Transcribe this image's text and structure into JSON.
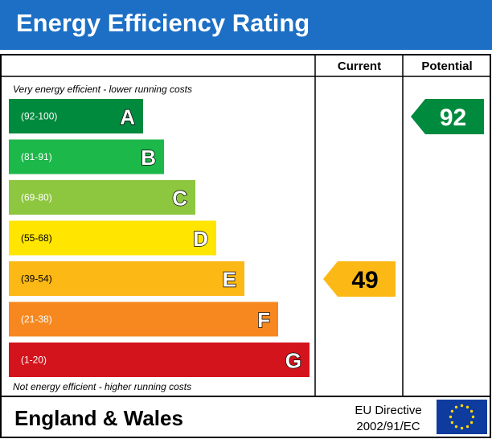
{
  "header": {
    "title": "Energy Efficiency Rating"
  },
  "columns": {
    "current": "Current",
    "potential": "Potential"
  },
  "notes": {
    "top": "Very energy efficient - lower running costs",
    "bottom": "Not energy efficient - higher running costs"
  },
  "chart_data": {
    "type": "bar",
    "categories": [
      "A",
      "B",
      "C",
      "D",
      "E",
      "F",
      "G"
    ],
    "ranges": [
      "(92-100)",
      "(81-91)",
      "(69-80)",
      "(55-68)",
      "(39-54)",
      "(21-38)",
      "(1-20)"
    ],
    "colors": [
      "#008a3e",
      "#1cb84a",
      "#8dc63f",
      "#ffe500",
      "#fcb814",
      "#f6881f",
      "#d3141c"
    ],
    "current": {
      "value": 49,
      "band": "E",
      "color": "#fcb814"
    },
    "potential": {
      "value": 92,
      "band": "A",
      "color": "#008a3e"
    }
  },
  "footer": {
    "region": "England & Wales",
    "directive_line1": "EU Directive",
    "directive_line2": "2002/91/EC"
  }
}
